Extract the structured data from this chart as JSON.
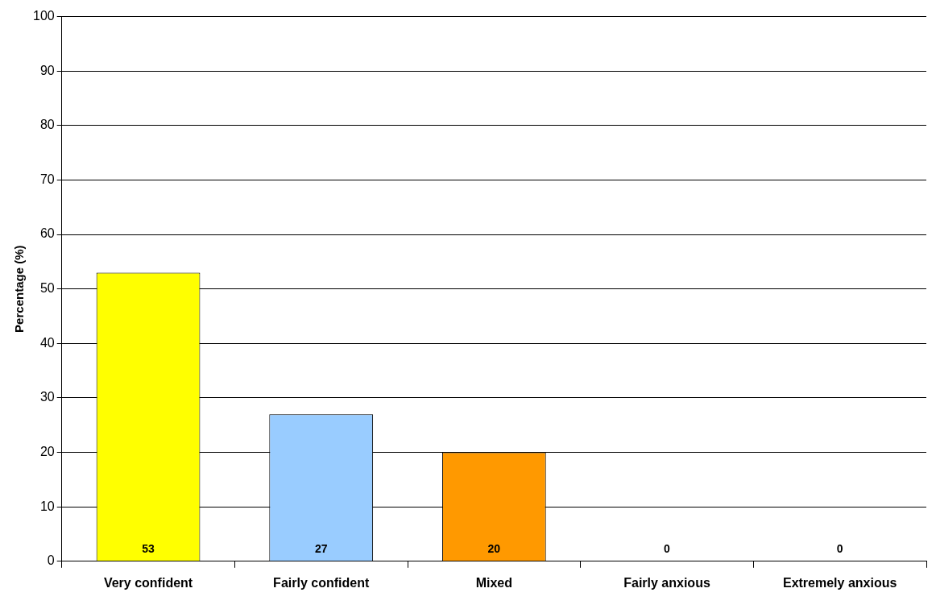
{
  "chart_data": {
    "type": "bar",
    "ylabel": "Percentage (%)",
    "categories": [
      "Very confident",
      "Fairly confident",
      "Mixed",
      "Fairly anxious",
      "Extremely anxious"
    ],
    "values": [
      53,
      27,
      20,
      0,
      0
    ],
    "colors": [
      "#ffff00",
      "#99ccff",
      "#ff9900",
      "#ff9900",
      "#ff9900"
    ],
    "ylim": [
      0,
      100
    ],
    "yticks": [
      0,
      10,
      20,
      30,
      40,
      50,
      60,
      70,
      80,
      90,
      100
    ],
    "grid": "y",
    "legend": false,
    "data_labels": true
  }
}
